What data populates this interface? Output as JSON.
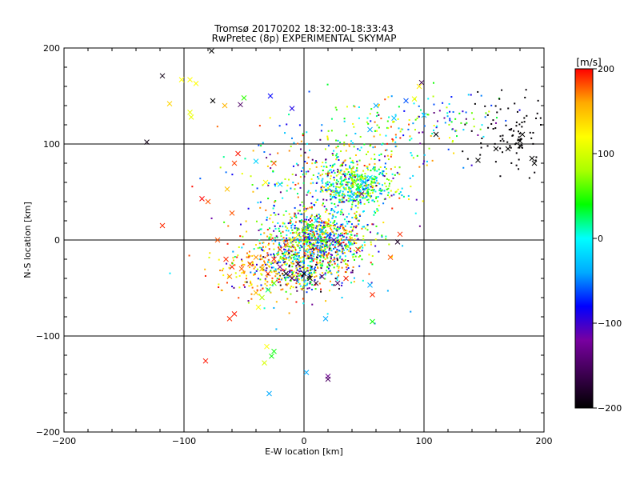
{
  "chart_data": {
    "type": "scatter",
    "title": "Tromsø 20170202 18:32:00-18:33:43",
    "subtitle": "RwPretec (8p) EXPERIMENTAL SKYMAP",
    "xlabel": "E-W location [km]",
    "ylabel": "N-S location [km]",
    "xlim": [
      -200,
      200
    ],
    "ylim": [
      -200,
      200
    ],
    "xticks": [
      -200,
      -100,
      0,
      100,
      200
    ],
    "yticks": [
      -200,
      -100,
      0,
      100,
      200
    ],
    "grid": "lines at ±100 and 0 on both axes",
    "colorbar": {
      "label": "[m/s]",
      "range": [
        -200,
        200
      ],
      "ticks": [
        200,
        100,
        0,
        -100,
        -200
      ],
      "colormap": [
        "#000000",
        "#3c0050",
        "#7800a0",
        "#0000ff",
        "#00aaff",
        "#00ffff",
        "#00ff00",
        "#aaff00",
        "#ffff00",
        "#ffaa00",
        "#ff0000"
      ]
    },
    "marker_key": "x = large markers, dot = small markers (velocity encoded by color)",
    "points_summary": "Approximate data distribution: dense cluster near (0,0), secondary cluster near (45,55), diagonal spread toward (180,110), scattered outliers; colors span -200..200 m/s",
    "points": [
      [
        -131,
        102,
        -190,
        "x"
      ],
      [
        -118,
        171,
        -190,
        "x"
      ],
      [
        -76,
        145,
        -200,
        "x"
      ],
      [
        -77,
        197,
        -200,
        "x"
      ],
      [
        -102,
        167,
        120,
        "x"
      ],
      [
        -95,
        167,
        120,
        "x"
      ],
      [
        -90,
        163,
        120,
        "x"
      ],
      [
        -112,
        142,
        140,
        "x"
      ],
      [
        -95,
        133,
        110,
        "x"
      ],
      [
        -94,
        128,
        110,
        "x"
      ],
      [
        -66,
        140,
        155,
        "x"
      ],
      [
        -50,
        148,
        50,
        "x"
      ],
      [
        -53,
        141,
        -150,
        "x"
      ],
      [
        -28,
        150,
        -80,
        "x"
      ],
      [
        -10,
        137,
        -90,
        "x"
      ],
      [
        -118,
        15,
        190,
        "x"
      ],
      [
        -80,
        40,
        180,
        "x"
      ],
      [
        -64,
        53,
        150,
        "x"
      ],
      [
        -60,
        28,
        180,
        "x"
      ],
      [
        -58,
        80,
        185,
        "x"
      ],
      [
        -55,
        90,
        195,
        "x"
      ],
      [
        -85,
        43,
        200,
        "x"
      ],
      [
        -72,
        0,
        180,
        "x"
      ],
      [
        -65,
        -20,
        190,
        "x"
      ],
      [
        -60,
        -28,
        190,
        "x"
      ],
      [
        -62,
        -38,
        170,
        "x"
      ],
      [
        -52,
        -30,
        175,
        "x"
      ],
      [
        -45,
        -25,
        185,
        "x"
      ],
      [
        -40,
        -18,
        165,
        "x"
      ],
      [
        -35,
        -30,
        160,
        "x"
      ],
      [
        -30,
        -35,
        185,
        "x"
      ],
      [
        -25,
        -20,
        190,
        "x"
      ],
      [
        -20,
        -10,
        180,
        "x"
      ],
      [
        -15,
        -5,
        175,
        "x"
      ],
      [
        -10,
        0,
        120,
        "x"
      ],
      [
        -5,
        5,
        100,
        "x"
      ],
      [
        0,
        10,
        60,
        "x"
      ],
      [
        5,
        15,
        30,
        "x"
      ],
      [
        10,
        20,
        0,
        "x"
      ],
      [
        15,
        10,
        -20,
        "x"
      ],
      [
        20,
        5,
        -60,
        "x"
      ],
      [
        25,
        0,
        -100,
        "x"
      ],
      [
        30,
        -5,
        -140,
        "x"
      ],
      [
        -5,
        -25,
        -180,
        "x"
      ],
      [
        0,
        -35,
        -200,
        "x"
      ],
      [
        5,
        -40,
        -190,
        "x"
      ],
      [
        10,
        -45,
        -170,
        "x"
      ],
      [
        15,
        -38,
        -150,
        "x"
      ],
      [
        -10,
        -40,
        -160,
        "x"
      ],
      [
        -15,
        -35,
        -200,
        "x"
      ],
      [
        -20,
        -28,
        -120,
        "x"
      ],
      [
        -25,
        -45,
        60,
        "x"
      ],
      [
        -30,
        -52,
        20,
        "x"
      ],
      [
        -35,
        -60,
        80,
        "x"
      ],
      [
        -40,
        -55,
        150,
        "x"
      ],
      [
        -38,
        -70,
        120,
        "x"
      ],
      [
        -62,
        -82,
        190,
        "x"
      ],
      [
        -58,
        -77,
        195,
        "x"
      ],
      [
        -82,
        -126,
        195,
        "x"
      ],
      [
        -31,
        -111,
        120,
        "x"
      ],
      [
        -33,
        -128,
        100,
        "x"
      ],
      [
        -27,
        -121,
        40,
        "x"
      ],
      [
        -25,
        -116,
        40,
        "x"
      ],
      [
        -29,
        -160,
        -40,
        "x"
      ],
      [
        2,
        -138,
        -40,
        "x"
      ],
      [
        20,
        -142,
        -130,
        "x"
      ],
      [
        20,
        -145,
        -150,
        "x"
      ],
      [
        55,
        -47,
        -40,
        "x"
      ],
      [
        57,
        -57,
        190,
        "x"
      ],
      [
        57,
        -85,
        40,
        "x"
      ],
      [
        18,
        -82,
        -40,
        "x"
      ],
      [
        35,
        -40,
        190,
        "x"
      ],
      [
        28,
        -45,
        -150,
        "x"
      ],
      [
        45,
        -10,
        190,
        "x"
      ],
      [
        72,
        -18,
        180,
        "x"
      ],
      [
        78,
        -2,
        -180,
        "x"
      ],
      [
        80,
        6,
        190,
        "x"
      ],
      [
        40,
        45,
        -20,
        "x"
      ],
      [
        45,
        55,
        30,
        "x"
      ],
      [
        50,
        60,
        -40,
        "x"
      ],
      [
        48,
        48,
        -120,
        "x"
      ],
      [
        42,
        60,
        80,
        "x"
      ],
      [
        55,
        65,
        -10,
        "x"
      ],
      [
        30,
        70,
        110,
        "x"
      ],
      [
        -20,
        58,
        -20,
        "x"
      ],
      [
        -40,
        82,
        -20,
        "x"
      ],
      [
        -25,
        80,
        180,
        "x"
      ],
      [
        -32,
        60,
        120,
        "x"
      ],
      [
        98,
        164,
        -160,
        "x"
      ],
      [
        96,
        160,
        130,
        "x"
      ],
      [
        92,
        147,
        110,
        "x"
      ],
      [
        75,
        127,
        -30,
        "x"
      ],
      [
        85,
        145,
        -60,
        "x"
      ],
      [
        100,
        130,
        -30,
        "x"
      ],
      [
        55,
        115,
        -40,
        "x"
      ],
      [
        60,
        140,
        -40,
        "x"
      ],
      [
        160,
        95,
        -200,
        "x"
      ],
      [
        170,
        95,
        -200,
        "x"
      ],
      [
        145,
        83,
        -200,
        "x"
      ],
      [
        180,
        103,
        -200,
        "x"
      ],
      [
        180,
        98,
        -200,
        "x"
      ],
      [
        190,
        85,
        -200,
        "x"
      ],
      [
        192,
        80,
        -200,
        "x"
      ],
      [
        182,
        110,
        -200,
        "x"
      ],
      [
        110,
        110,
        -200,
        "x"
      ]
    ]
  }
}
